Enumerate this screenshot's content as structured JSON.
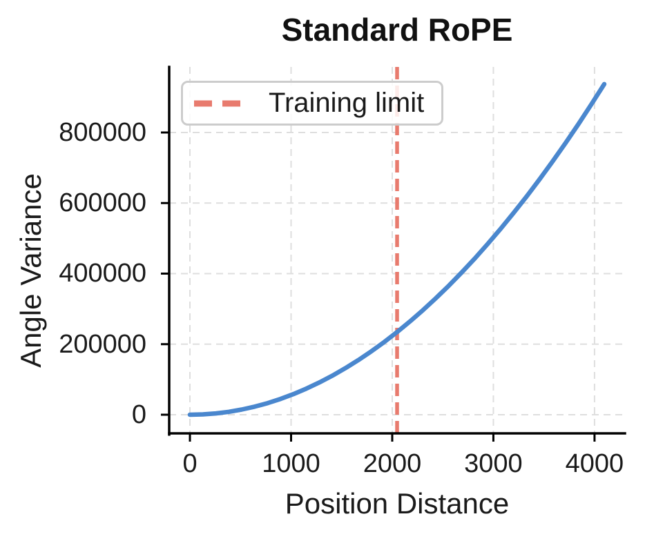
{
  "chart_data": {
    "type": "line",
    "title": "Standard RoPE",
    "xlabel": "Position Distance",
    "ylabel": "Angle Variance",
    "grid": true,
    "grid_style": "dashed",
    "grid_color": "#dedede",
    "background_color": "#ffffff",
    "xlim": [
      -205,
      4301
    ],
    "ylim": [
      -52800,
      985800
    ],
    "x_ticks": [
      0,
      1000,
      2000,
      3000,
      4000
    ],
    "y_ticks": [
      0,
      200000,
      400000,
      600000,
      800000
    ],
    "x_tick_labels": [
      "0",
      "1000",
      "2000",
      "3000",
      "4000"
    ],
    "y_tick_labels": [
      "0",
      "200000",
      "400000",
      "600000",
      "800000"
    ],
    "legend_position": "upper left",
    "series": [
      {
        "name": "Angle Variance",
        "color": "#4a87ce",
        "style": "solid",
        "line_width": 6.5,
        "x": [
          0,
          128,
          256,
          384,
          512,
          640,
          768,
          896,
          1024,
          1152,
          1280,
          1408,
          1536,
          1664,
          1792,
          1920,
          2048,
          2176,
          2304,
          2432,
          2560,
          2688,
          2816,
          2944,
          3072,
          3200,
          3328,
          3456,
          3584,
          3712,
          3840,
          3968,
          4096
        ],
        "y": [
          0,
          915,
          3660,
          8235,
          14641,
          22876,
          32942,
          44837,
          58563,
          74119,
          91505,
          110721,
          131767,
          154643,
          179349,
          205885,
          234252,
          264448,
          296475,
          330332,
          366019,
          403536,
          442883,
          484060,
          527067,
          571904,
          618571,
          667069,
          717396,
          769554,
          823542,
          879360,
          937008
        ]
      }
    ],
    "annotations": [
      {
        "type": "vline",
        "x": 2048,
        "label": "Training limit",
        "color": "#e87b6e",
        "style": "dashed",
        "line_width": 5.5
      }
    ]
  }
}
